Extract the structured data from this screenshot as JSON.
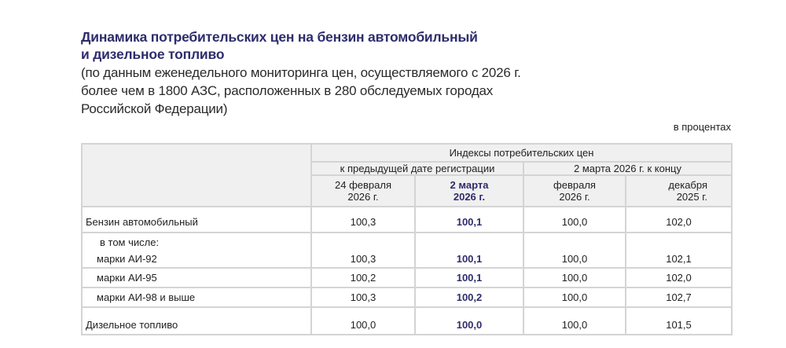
{
  "title_lines": [
    "Динамика потребительских цен на бензин автомобильный",
    "и дизельное топливо"
  ],
  "subtitle_lines": [
    "(по данным еженедельного мониторинга цен, осуществляемого с 2026 г.",
    "более чем в 1800 АЗС, расположенных в 280 обследуемых городах",
    "Российской Федерации)"
  ],
  "units": "в процентах",
  "table": {
    "header_main": "Индексы потребительских цен",
    "group1": "к предыдущей дате регистрации",
    "group2": "2 марта 2026 г. к концу",
    "columns": [
      {
        "line1": "24 февраля",
        "line2": "2026 г."
      },
      {
        "line1": "2 марта",
        "line2": "2026 г."
      },
      {
        "line1": "февраля",
        "line2": "2026 г."
      },
      {
        "line1": "декабря",
        "line2": "2025 г."
      }
    ],
    "subheading": "в том числе:",
    "rows": [
      {
        "label": "Бензин автомобильный",
        "values": [
          "100,3",
          "100,1",
          "100,0",
          "102,0"
        ]
      },
      {
        "label": "марки АИ-92",
        "values": [
          "100,3",
          "100,1",
          "100,0",
          "102,1"
        ]
      },
      {
        "label": "марки АИ-95",
        "values": [
          "100,2",
          "100,1",
          "100,0",
          "102,0"
        ]
      },
      {
        "label": "марки АИ-98 и выше",
        "values": [
          "100,3",
          "100,2",
          "100,0",
          "102,7"
        ]
      },
      {
        "label": "Дизельное топливо",
        "values": [
          "100,0",
          "100,0",
          "100,0",
          "101,5"
        ]
      }
    ]
  },
  "colors": {
    "accent": "#2e2c6c",
    "header_bg": "#f0f0f0",
    "border": "#d4d4d4"
  }
}
